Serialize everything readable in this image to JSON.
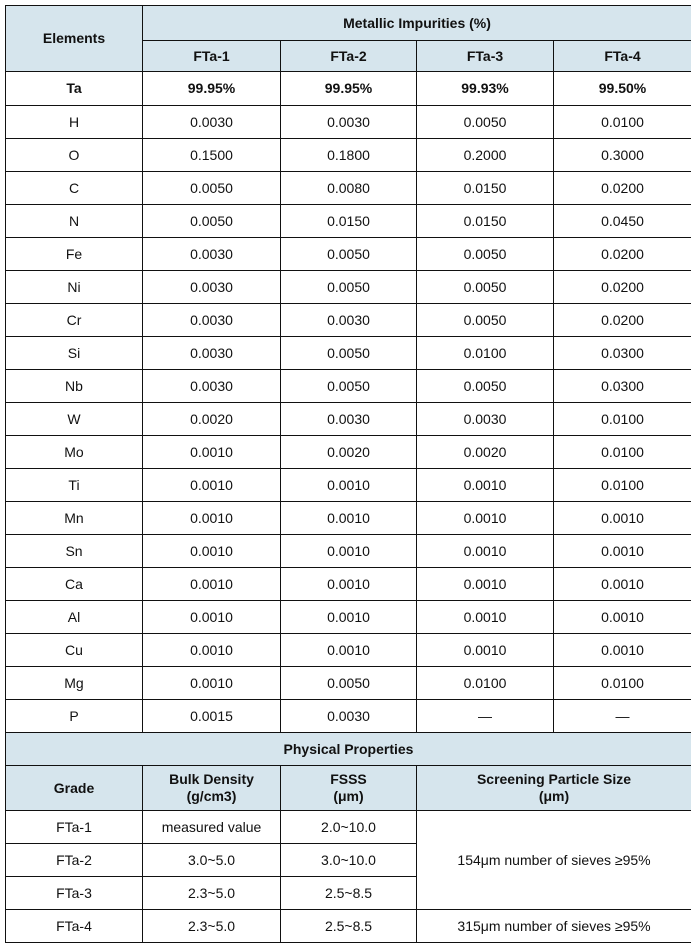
{
  "header": {
    "elements_label": "Elements",
    "group_label": "Metallic Impurities (%)",
    "grades": [
      "FTa-1",
      "FTa-2",
      "FTa-3",
      "FTa-4"
    ]
  },
  "ta_row": {
    "element": "Ta",
    "values": [
      "99.95%",
      "99.95%",
      "99.93%",
      "99.50%"
    ]
  },
  "impurities": [
    {
      "element": "H",
      "values": [
        "0.0030",
        "0.0030",
        "0.0050",
        "0.0100"
      ]
    },
    {
      "element": "O",
      "values": [
        "0.1500",
        "0.1800",
        "0.2000",
        "0.3000"
      ]
    },
    {
      "element": "C",
      "values": [
        "0.0050",
        "0.0080",
        "0.0150",
        "0.0200"
      ]
    },
    {
      "element": "N",
      "values": [
        "0.0050",
        "0.0150",
        "0.0150",
        "0.0450"
      ]
    },
    {
      "element": "Fe",
      "values": [
        "0.0030",
        "0.0050",
        "0.0050",
        "0.0200"
      ]
    },
    {
      "element": "Ni",
      "values": [
        "0.0030",
        "0.0050",
        "0.0050",
        "0.0200"
      ]
    },
    {
      "element": "Cr",
      "values": [
        "0.0030",
        "0.0030",
        "0.0050",
        "0.0200"
      ]
    },
    {
      "element": "Si",
      "values": [
        "0.0030",
        "0.0050",
        "0.0100",
        "0.0300"
      ]
    },
    {
      "element": "Nb",
      "values": [
        "0.0030",
        "0.0050",
        "0.0050",
        "0.0300"
      ]
    },
    {
      "element": "W",
      "values": [
        "0.0020",
        "0.0030",
        "0.0030",
        "0.0100"
      ]
    },
    {
      "element": "Mo",
      "values": [
        "0.0010",
        "0.0020",
        "0.0020",
        "0.0100"
      ]
    },
    {
      "element": "Ti",
      "values": [
        "0.0010",
        "0.0010",
        "0.0010",
        "0.0100"
      ]
    },
    {
      "element": "Mn",
      "values": [
        "0.0010",
        "0.0010",
        "0.0010",
        "0.0010"
      ]
    },
    {
      "element": "Sn",
      "values": [
        "0.0010",
        "0.0010",
        "0.0010",
        "0.0010"
      ]
    },
    {
      "element": "Ca",
      "values": [
        "0.0010",
        "0.0010",
        "0.0010",
        "0.0010"
      ]
    },
    {
      "element": "Al",
      "values": [
        "0.0010",
        "0.0010",
        "0.0010",
        "0.0010"
      ]
    },
    {
      "element": "Cu",
      "values": [
        "0.0010",
        "0.0010",
        "0.0010",
        "0.0010"
      ]
    },
    {
      "element": "Mg",
      "values": [
        "0.0010",
        "0.0050",
        "0.0100",
        "0.0100"
      ]
    },
    {
      "element": "P",
      "values": [
        "0.0015",
        "0.0030",
        "—",
        "—"
      ]
    }
  ],
  "physical": {
    "title": "Physical Properties",
    "columns": {
      "grade": "Grade",
      "bulk_density": "Bulk Density",
      "bulk_density_unit": "(g/cm3)",
      "fsss": "FSSS",
      "fsss_unit": "(μm)",
      "screening": "Screening Particle Size",
      "screening_unit": "(μm)"
    },
    "rows": [
      {
        "grade": "FTa-1",
        "bulk_density": "measured value",
        "fsss": "2.0~10.0"
      },
      {
        "grade": "FTa-2",
        "bulk_density": "3.0~5.0",
        "fsss": "3.0~10.0"
      },
      {
        "grade": "FTa-3",
        "bulk_density": "2.3~5.0",
        "fsss": "2.5~8.5"
      },
      {
        "grade": "FTa-4",
        "bulk_density": "2.3~5.0",
        "fsss": "2.5~8.5"
      }
    ],
    "screening_groups": [
      "154μm number of sieves ≥95%",
      "315μm number of sieves ≥95%"
    ]
  },
  "colors": {
    "header_bg": "#d6e5ed",
    "border": "#111111"
  }
}
